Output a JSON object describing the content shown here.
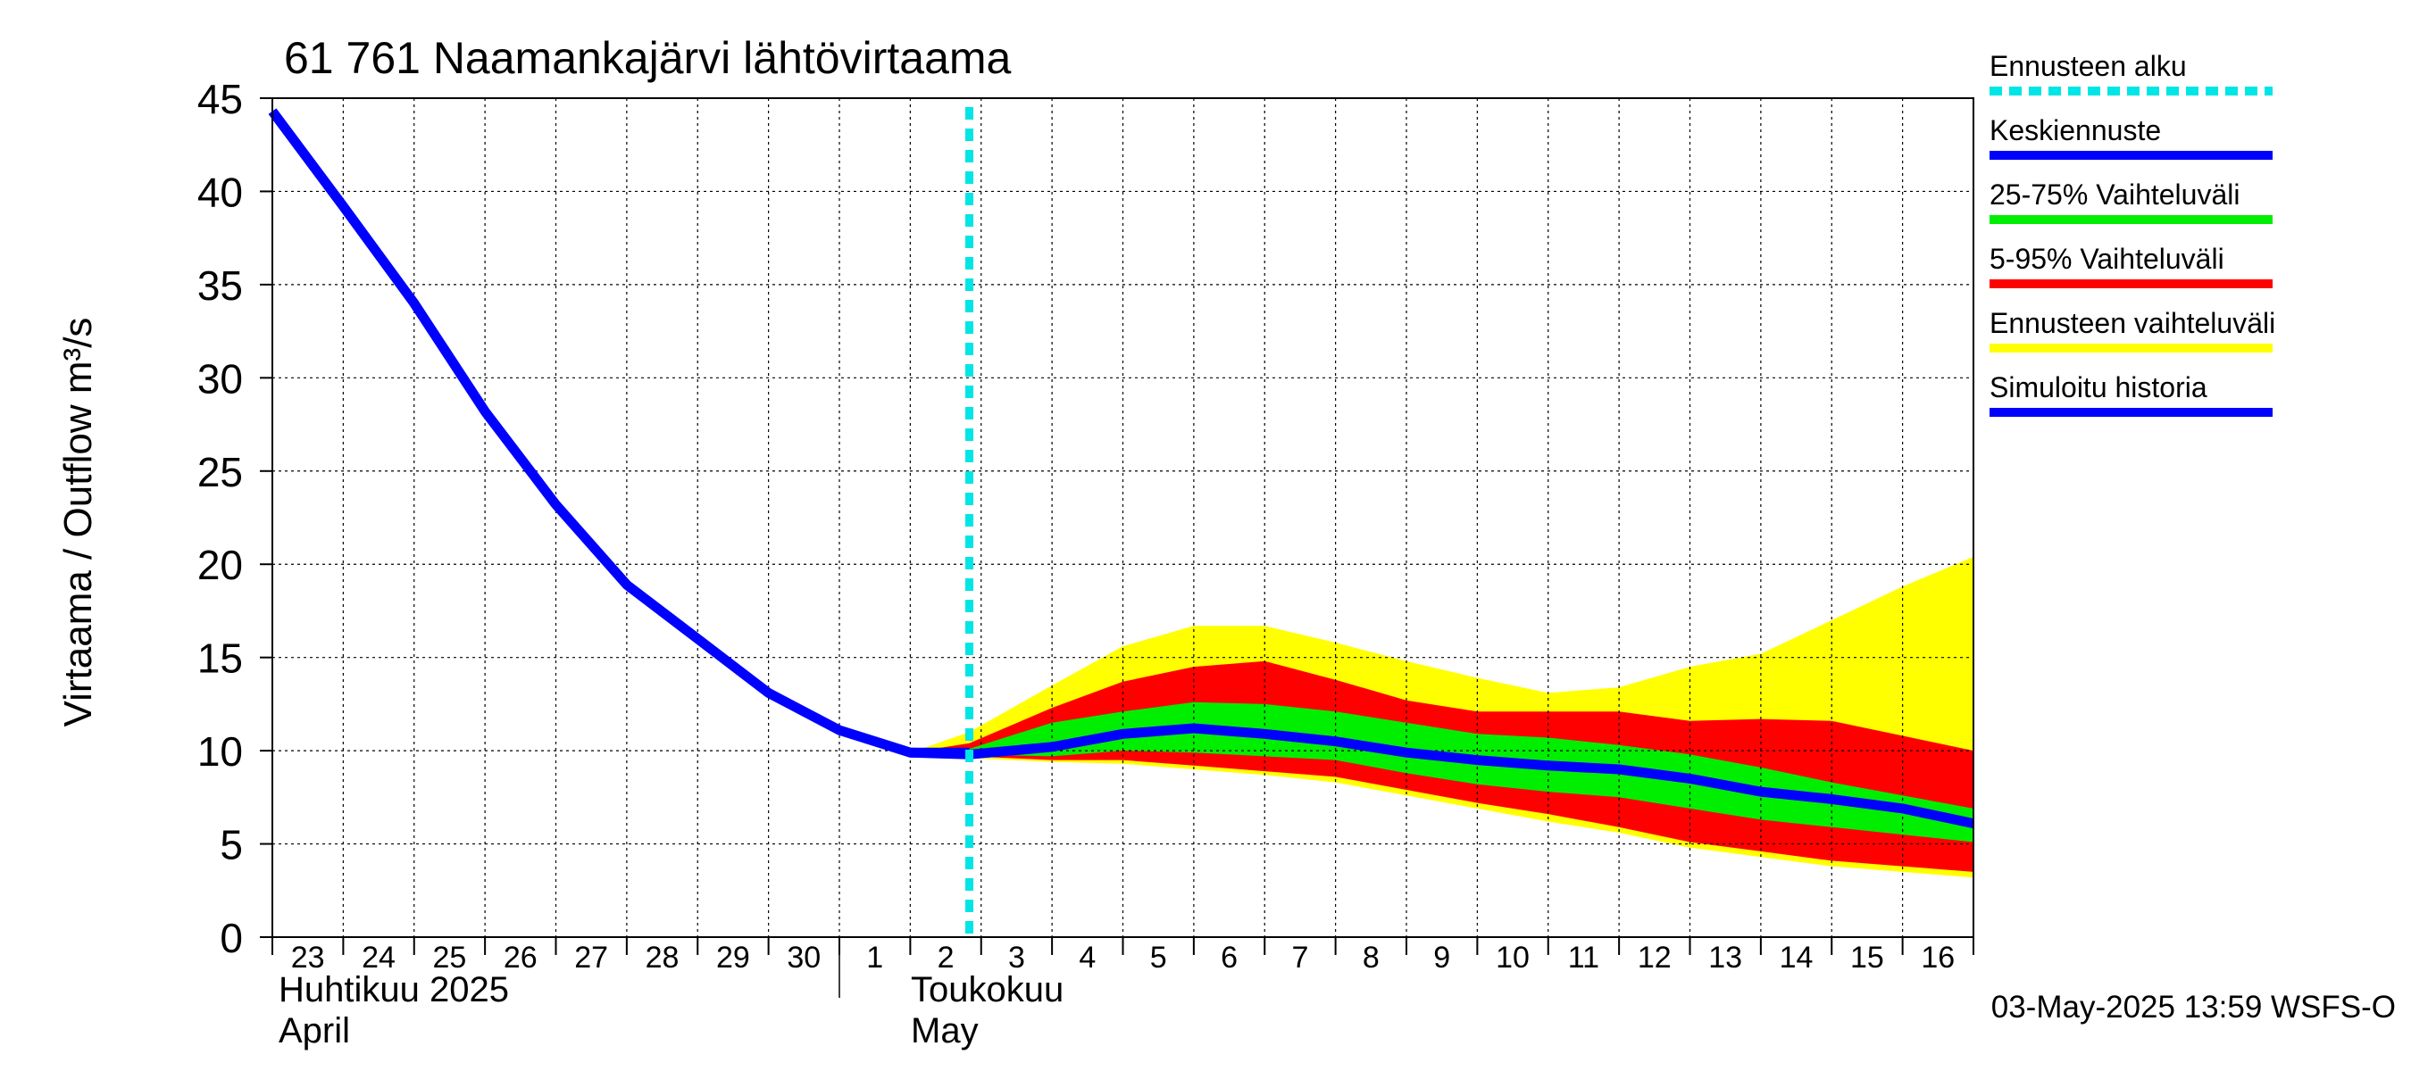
{
  "chart_data": {
    "type": "area",
    "title": "61 761 Naamankajärvi lähtövirtaama",
    "ylabel": "Virtaama / Outflow    m³/s",
    "ylim": [
      0,
      45
    ],
    "yticks": [
      0,
      5,
      10,
      15,
      20,
      25,
      30,
      35,
      40,
      45
    ],
    "xlim": [
      "2025-04-23",
      "2025-05-16"
    ],
    "x_tick_labels": [
      "23",
      "24",
      "25",
      "26",
      "27",
      "28",
      "29",
      "30",
      "1",
      "2",
      "3",
      "4",
      "5",
      "6",
      "7",
      "8",
      "9",
      "10",
      "11",
      "12",
      "13",
      "14",
      "15",
      "16"
    ],
    "month_labels": [
      {
        "fi": "Huhtikuu  2025",
        "en": "April"
      },
      {
        "fi": "Toukokuu",
        "en": "May"
      }
    ],
    "grid": true,
    "forecast_start": "2025-05-02 20:00",
    "legend": [
      {
        "label": "Ennusteen alku",
        "color": "#00e5e5",
        "style": "dashed"
      },
      {
        "label": "Keskiennuste",
        "color": "#0000ff",
        "style": "solid"
      },
      {
        "label": "25-75% Vaihteluväli",
        "color": "#00ee00",
        "style": "solid"
      },
      {
        "label": "5-95% Vaihteluväli",
        "color": "#ff0000",
        "style": "solid"
      },
      {
        "label": "Ennusteen vaihteluväli",
        "color": "#ffff00",
        "style": "solid"
      },
      {
        "label": "Simuloitu historia",
        "color": "#0000ff",
        "style": "solid"
      }
    ],
    "history": {
      "x": [
        "2025-04-23",
        "2025-04-24",
        "2025-04-25",
        "2025-04-26",
        "2025-04-27",
        "2025-04-28",
        "2025-04-29",
        "2025-04-30",
        "2025-05-01",
        "2025-05-02",
        "2025-05-02 20:00"
      ],
      "y": [
        44.3,
        39.2,
        34.0,
        28.2,
        23.2,
        18.9,
        16.0,
        13.1,
        11.1,
        9.9,
        9.9
      ]
    },
    "forecast": {
      "x": [
        "2025-05-02",
        "2025-05-02 20:00",
        "2025-05-04",
        "2025-05-05",
        "2025-05-06",
        "2025-05-07",
        "2025-05-08",
        "2025-05-09",
        "2025-05-10",
        "2025-05-11",
        "2025-05-12",
        "2025-05-13",
        "2025-05-14",
        "2025-05-15",
        "2025-05-16",
        "2025-05-17"
      ],
      "mean": [
        9.9,
        9.8,
        10.2,
        10.9,
        11.2,
        10.9,
        10.5,
        9.9,
        9.5,
        9.2,
        9.0,
        8.5,
        7.8,
        7.4,
        6.9,
        6.1
      ],
      "p25": [
        9.9,
        9.8,
        9.7,
        10.0,
        9.9,
        9.7,
        9.5,
        8.8,
        8.2,
        7.8,
        7.5,
        6.9,
        6.3,
        5.9,
        5.5,
        5.1
      ],
      "p75": [
        9.9,
        10.1,
        11.5,
        12.1,
        12.6,
        12.5,
        12.1,
        11.5,
        10.9,
        10.7,
        10.3,
        9.8,
        9.1,
        8.3,
        7.6,
        6.9
      ],
      "p5": [
        9.9,
        9.7,
        9.5,
        9.5,
        9.2,
        8.9,
        8.6,
        7.9,
        7.2,
        6.6,
        5.9,
        5.1,
        4.6,
        4.1,
        3.8,
        3.5
      ],
      "p95": [
        9.9,
        10.4,
        12.3,
        13.7,
        14.5,
        14.8,
        13.8,
        12.7,
        12.1,
        12.1,
        12.1,
        11.6,
        11.7,
        11.6,
        10.8,
        10.0
      ],
      "min": [
        9.9,
        9.6,
        9.4,
        9.3,
        9.0,
        8.7,
        8.3,
        7.6,
        6.9,
        6.2,
        5.6,
        4.8,
        4.3,
        3.8,
        3.5,
        3.2
      ],
      "max": [
        9.9,
        11.0,
        13.5,
        15.6,
        16.7,
        16.7,
        15.8,
        14.8,
        13.9,
        13.1,
        13.4,
        14.5,
        15.2,
        17.0,
        18.8,
        20.4
      ]
    }
  },
  "timestamp": "03-May-2025 13:59 WSFS-O"
}
